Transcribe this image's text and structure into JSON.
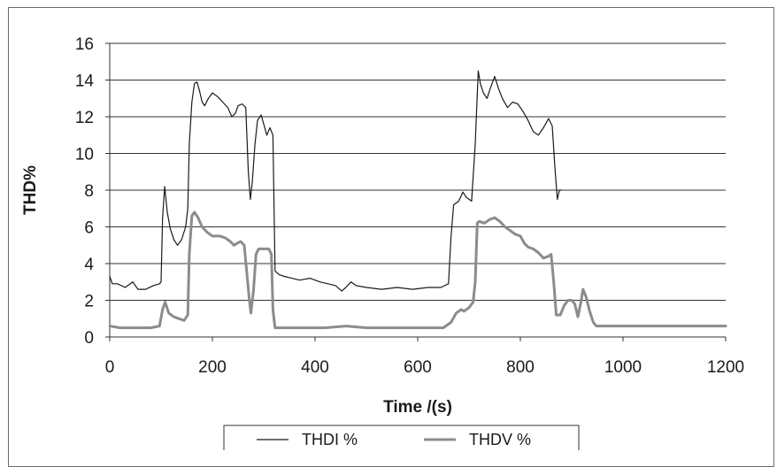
{
  "chart_data": {
    "type": "line",
    "title": "",
    "xlabel": "Time /(s)",
    "ylabel": "THD%",
    "xlim": [
      0,
      1200
    ],
    "ylim": [
      0,
      16
    ],
    "xticks": [
      0,
      200,
      400,
      600,
      800,
      1000,
      1200
    ],
    "yticks": [
      0,
      2,
      4,
      6,
      8,
      10,
      12,
      14,
      16
    ],
    "grid": "horizontal",
    "legend_position": "bottom",
    "series": [
      {
        "name": "THDI %",
        "color": "#1a1a1a",
        "points": [
          [
            0,
            3.3
          ],
          [
            5,
            2.9
          ],
          [
            15,
            2.9
          ],
          [
            30,
            2.7
          ],
          [
            45,
            3.0
          ],
          [
            55,
            2.6
          ],
          [
            70,
            2.6
          ],
          [
            85,
            2.8
          ],
          [
            97,
            2.9
          ],
          [
            100,
            3.0
          ],
          [
            103,
            6.5
          ],
          [
            107,
            8.2
          ],
          [
            112,
            6.8
          ],
          [
            118,
            5.9
          ],
          [
            125,
            5.3
          ],
          [
            132,
            5.0
          ],
          [
            140,
            5.3
          ],
          [
            148,
            6.0
          ],
          [
            152,
            7.0
          ],
          [
            155,
            10.5
          ],
          [
            160,
            12.8
          ],
          [
            165,
            13.8
          ],
          [
            170,
            13.9
          ],
          [
            175,
            13.4
          ],
          [
            180,
            12.8
          ],
          [
            185,
            12.6
          ],
          [
            192,
            13.0
          ],
          [
            200,
            13.3
          ],
          [
            210,
            13.1
          ],
          [
            220,
            12.8
          ],
          [
            230,
            12.5
          ],
          [
            238,
            12.0
          ],
          [
            245,
            12.2
          ],
          [
            250,
            12.6
          ],
          [
            258,
            12.7
          ],
          [
            265,
            12.5
          ],
          [
            270,
            9.0
          ],
          [
            274,
            7.5
          ],
          [
            278,
            8.5
          ],
          [
            283,
            10.5
          ],
          [
            288,
            11.8
          ],
          [
            295,
            12.1
          ],
          [
            300,
            11.6
          ],
          [
            306,
            11.0
          ],
          [
            312,
            11.4
          ],
          [
            318,
            11.0
          ],
          [
            322,
            3.6
          ],
          [
            330,
            3.4
          ],
          [
            340,
            3.3
          ],
          [
            355,
            3.2
          ],
          [
            370,
            3.1
          ],
          [
            390,
            3.2
          ],
          [
            410,
            3.0
          ],
          [
            425,
            2.9
          ],
          [
            440,
            2.8
          ],
          [
            452,
            2.5
          ],
          [
            460,
            2.7
          ],
          [
            470,
            3.0
          ],
          [
            480,
            2.8
          ],
          [
            500,
            2.7
          ],
          [
            530,
            2.6
          ],
          [
            560,
            2.7
          ],
          [
            590,
            2.6
          ],
          [
            620,
            2.7
          ],
          [
            645,
            2.7
          ],
          [
            660,
            2.9
          ],
          [
            665,
            5.5
          ],
          [
            670,
            7.2
          ],
          [
            680,
            7.4
          ],
          [
            688,
            7.9
          ],
          [
            695,
            7.6
          ],
          [
            705,
            7.4
          ],
          [
            712,
            10.5
          ],
          [
            718,
            14.5
          ],
          [
            722,
            13.8
          ],
          [
            728,
            13.3
          ],
          [
            735,
            13.0
          ],
          [
            742,
            13.6
          ],
          [
            750,
            14.2
          ],
          [
            758,
            13.5
          ],
          [
            765,
            13.0
          ],
          [
            775,
            12.5
          ],
          [
            785,
            12.8
          ],
          [
            795,
            12.7
          ],
          [
            805,
            12.3
          ],
          [
            815,
            11.8
          ],
          [
            825,
            11.2
          ],
          [
            835,
            11.0
          ],
          [
            845,
            11.4
          ],
          [
            855,
            11.9
          ],
          [
            862,
            11.5
          ],
          [
            868,
            9.0
          ],
          [
            872,
            7.5
          ],
          [
            876,
            8.0
          ],
          [
            880,
            8.0
          ]
        ]
      },
      {
        "name": "THDV %",
        "color": "#8c8c8c",
        "points": [
          [
            0,
            0.6
          ],
          [
            20,
            0.5
          ],
          [
            50,
            0.5
          ],
          [
            80,
            0.5
          ],
          [
            97,
            0.6
          ],
          [
            103,
            1.5
          ],
          [
            108,
            1.9
          ],
          [
            115,
            1.3
          ],
          [
            125,
            1.1
          ],
          [
            135,
            1.0
          ],
          [
            145,
            0.9
          ],
          [
            152,
            1.2
          ],
          [
            155,
            4.5
          ],
          [
            160,
            6.6
          ],
          [
            165,
            6.8
          ],
          [
            172,
            6.5
          ],
          [
            180,
            6.0
          ],
          [
            190,
            5.7
          ],
          [
            200,
            5.5
          ],
          [
            215,
            5.5
          ],
          [
            225,
            5.4
          ],
          [
            235,
            5.2
          ],
          [
            242,
            5.0
          ],
          [
            248,
            5.1
          ],
          [
            255,
            5.2
          ],
          [
            262,
            5.0
          ],
          [
            267,
            3.5
          ],
          [
            272,
            2.0
          ],
          [
            275,
            1.3
          ],
          [
            280,
            2.5
          ],
          [
            285,
            4.5
          ],
          [
            290,
            4.8
          ],
          [
            300,
            4.8
          ],
          [
            310,
            4.8
          ],
          [
            315,
            4.5
          ],
          [
            318,
            1.5
          ],
          [
            322,
            0.5
          ],
          [
            340,
            0.5
          ],
          [
            380,
            0.5
          ],
          [
            420,
            0.5
          ],
          [
            460,
            0.6
          ],
          [
            500,
            0.5
          ],
          [
            540,
            0.5
          ],
          [
            580,
            0.5
          ],
          [
            620,
            0.5
          ],
          [
            650,
            0.5
          ],
          [
            665,
            0.8
          ],
          [
            675,
            1.3
          ],
          [
            685,
            1.5
          ],
          [
            690,
            1.4
          ],
          [
            700,
            1.6
          ],
          [
            708,
            1.9
          ],
          [
            712,
            3.0
          ],
          [
            716,
            6.2
          ],
          [
            720,
            6.3
          ],
          [
            730,
            6.2
          ],
          [
            740,
            6.4
          ],
          [
            750,
            6.5
          ],
          [
            760,
            6.3
          ],
          [
            770,
            6.0
          ],
          [
            780,
            5.8
          ],
          [
            790,
            5.6
          ],
          [
            800,
            5.5
          ],
          [
            808,
            5.1
          ],
          [
            815,
            4.9
          ],
          [
            825,
            4.8
          ],
          [
            835,
            4.6
          ],
          [
            845,
            4.3
          ],
          [
            855,
            4.4
          ],
          [
            860,
            4.5
          ],
          [
            865,
            3.0
          ],
          [
            870,
            1.2
          ],
          [
            878,
            1.2
          ],
          [
            885,
            1.7
          ],
          [
            893,
            2.0
          ],
          [
            900,
            2.0
          ],
          [
            906,
            1.8
          ],
          [
            912,
            1.1
          ],
          [
            918,
            1.9
          ],
          [
            922,
            2.6
          ],
          [
            928,
            2.2
          ],
          [
            935,
            1.4
          ],
          [
            942,
            0.8
          ],
          [
            948,
            0.6
          ],
          [
            960,
            0.6
          ],
          [
            1000,
            0.6
          ],
          [
            1050,
            0.6
          ],
          [
            1100,
            0.6
          ],
          [
            1150,
            0.6
          ],
          [
            1200,
            0.6
          ]
        ]
      }
    ]
  }
}
